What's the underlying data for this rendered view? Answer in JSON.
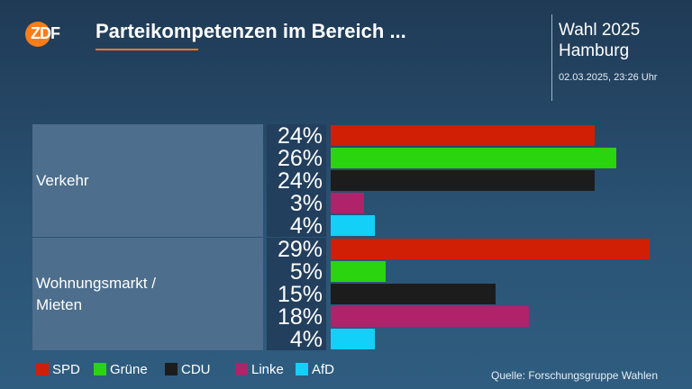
{
  "header": {
    "logo_text": "ZDF",
    "title": "Parteikompetenzen im Bereich ...",
    "election_line1": "Wahl 2025",
    "election_line2": "Hamburg",
    "timestamp": "02.03.2025, 23:26 Uhr"
  },
  "colors": {
    "SPD": "#d01f04",
    "Grüne": "#2ad40f",
    "CDU": "#1c1c1c",
    "Linke": "#b0226a",
    "AfD": "#12d0f7",
    "accent": "#fa7d19"
  },
  "chart_data": {
    "type": "bar",
    "orientation": "horizontal",
    "parties": [
      "SPD",
      "Grüne",
      "CDU",
      "Linke",
      "AfD"
    ],
    "groups": [
      {
        "label": "Verkehr",
        "values": [
          24,
          26,
          24,
          3,
          4
        ],
        "value_labels": [
          "24%",
          "26%",
          "24%",
          "3%",
          "4%"
        ]
      },
      {
        "label": "Wohnungsmarkt / Mieten",
        "values": [
          29,
          5,
          15,
          18,
          4
        ],
        "value_labels": [
          "29%",
          "5%",
          "15%",
          "18%",
          "4%"
        ]
      }
    ],
    "unit": "%",
    "legend_position": "bottom-left"
  },
  "footer": {
    "source": "Quelle: Forschungsgruppe Wahlen"
  }
}
